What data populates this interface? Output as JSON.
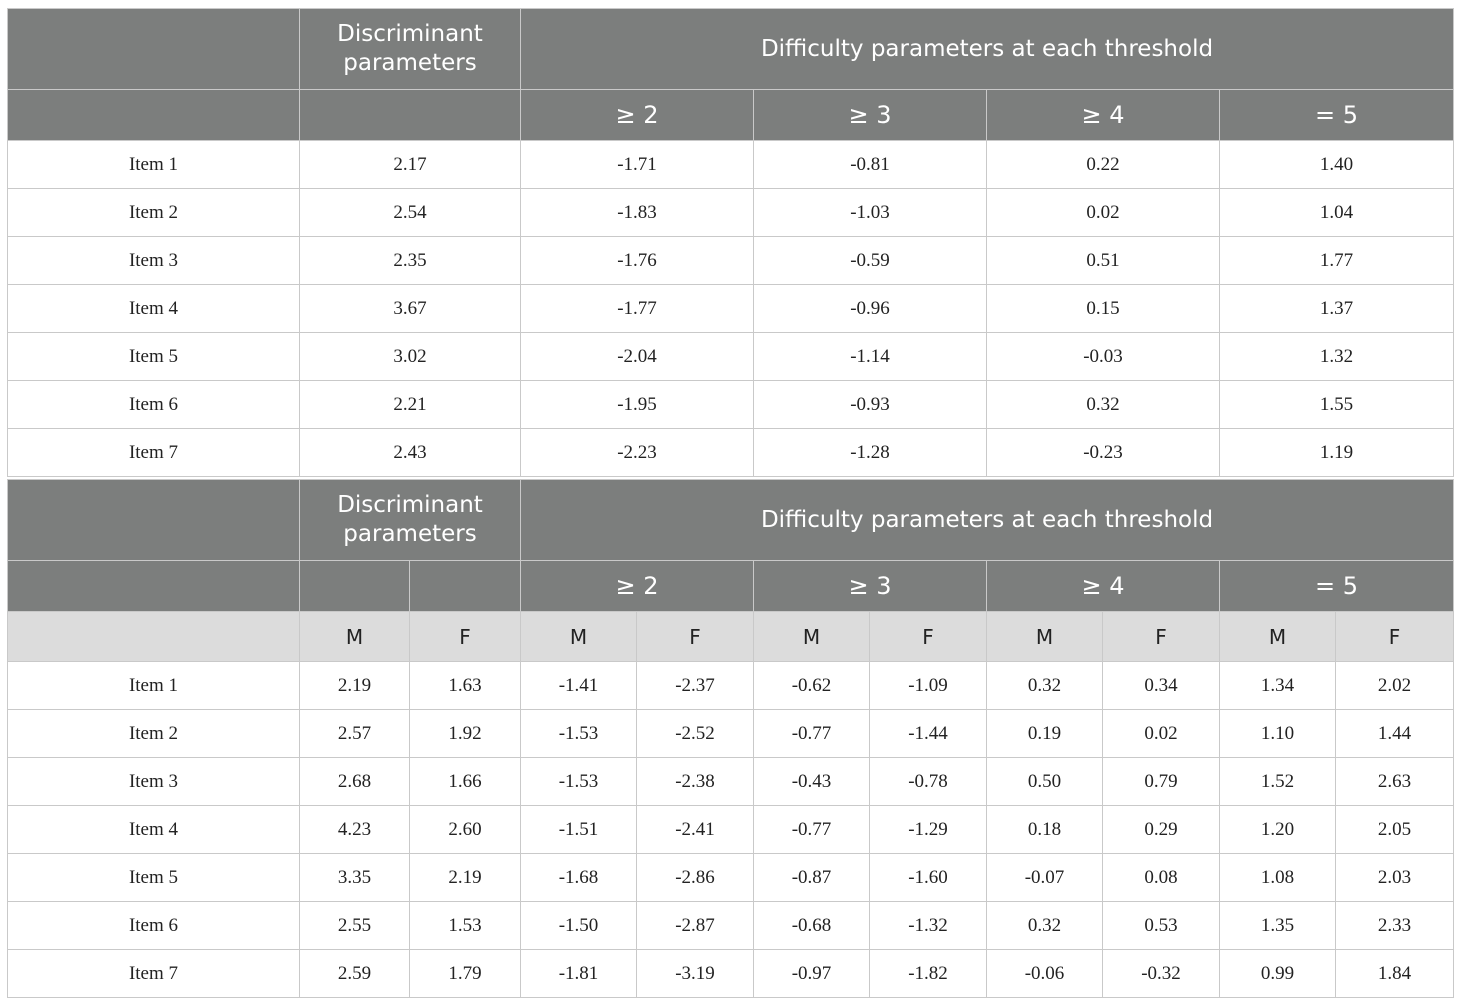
{
  "table1": {
    "header_discriminant": "Discriminant parameters",
    "header_difficulty": "Difficulty parameters at each threshold",
    "thresholds": [
      "≥ 2",
      "≥ 3",
      "≥ 4",
      "= 5"
    ],
    "rows": [
      {
        "item": "Item 1",
        "disc": "2.17",
        "t2": "-1.71",
        "t3": "-0.81",
        "t4": "0.22",
        "t5": "1.40"
      },
      {
        "item": "Item 2",
        "disc": "2.54",
        "t2": "-1.83",
        "t3": "-1.03",
        "t4": "0.02",
        "t5": "1.04"
      },
      {
        "item": "Item 3",
        "disc": "2.35",
        "t2": "-1.76",
        "t3": "-0.59",
        "t4": "0.51",
        "t5": "1.77"
      },
      {
        "item": "Item 4",
        "disc": "3.67",
        "t2": "-1.77",
        "t3": "-0.96",
        "t4": "0.15",
        "t5": "1.37"
      },
      {
        "item": "Item 5",
        "disc": "3.02",
        "t2": "-2.04",
        "t3": "-1.14",
        "t4": "-0.03",
        "t5": "1.32"
      },
      {
        "item": "Item 6",
        "disc": "2.21",
        "t2": "-1.95",
        "t3": "-0.93",
        "t4": "0.32",
        "t5": "1.55"
      },
      {
        "item": "Item 7",
        "disc": "2.43",
        "t2": "-2.23",
        "t3": "-1.28",
        "t4": "-0.23",
        "t5": "1.19"
      }
    ]
  },
  "table2": {
    "header_discriminant": "Discriminant parameters",
    "header_difficulty": "Difficulty parameters at each threshold",
    "thresholds": [
      "≥ 2",
      "≥ 3",
      "≥ 4",
      "= 5"
    ],
    "sex_labels": [
      "M",
      "F"
    ],
    "rows": [
      {
        "item": "Item 1",
        "v": [
          "2.19",
          "1.63",
          "-1.41",
          "-2.37",
          "-0.62",
          "-1.09",
          "0.32",
          "0.34",
          "1.34",
          "2.02"
        ]
      },
      {
        "item": "Item 2",
        "v": [
          "2.57",
          "1.92",
          "-1.53",
          "-2.52",
          "-0.77",
          "-1.44",
          "0.19",
          "0.02",
          "1.10",
          "1.44"
        ]
      },
      {
        "item": "Item 3",
        "v": [
          "2.68",
          "1.66",
          "-1.53",
          "-2.38",
          "-0.43",
          "-0.78",
          "0.50",
          "0.79",
          "1.52",
          "2.63"
        ]
      },
      {
        "item": "Item 4",
        "v": [
          "4.23",
          "2.60",
          "-1.51",
          "-2.41",
          "-0.77",
          "-1.29",
          "0.18",
          "0.29",
          "1.20",
          "2.05"
        ]
      },
      {
        "item": "Item 5",
        "v": [
          "3.35",
          "2.19",
          "-1.68",
          "-2.86",
          "-0.87",
          "-1.60",
          "-0.07",
          "0.08",
          "1.08",
          "2.03"
        ]
      },
      {
        "item": "Item 6",
        "v": [
          "2.55",
          "1.53",
          "-1.50",
          "-2.87",
          "-0.68",
          "-1.32",
          "0.32",
          "0.53",
          "1.35",
          "2.33"
        ]
      },
      {
        "item": "Item 7",
        "v": [
          "2.59",
          "1.79",
          "-1.81",
          "-3.19",
          "-0.97",
          "-1.82",
          "-0.06",
          "-0.32",
          "0.99",
          "1.84"
        ]
      }
    ]
  }
}
